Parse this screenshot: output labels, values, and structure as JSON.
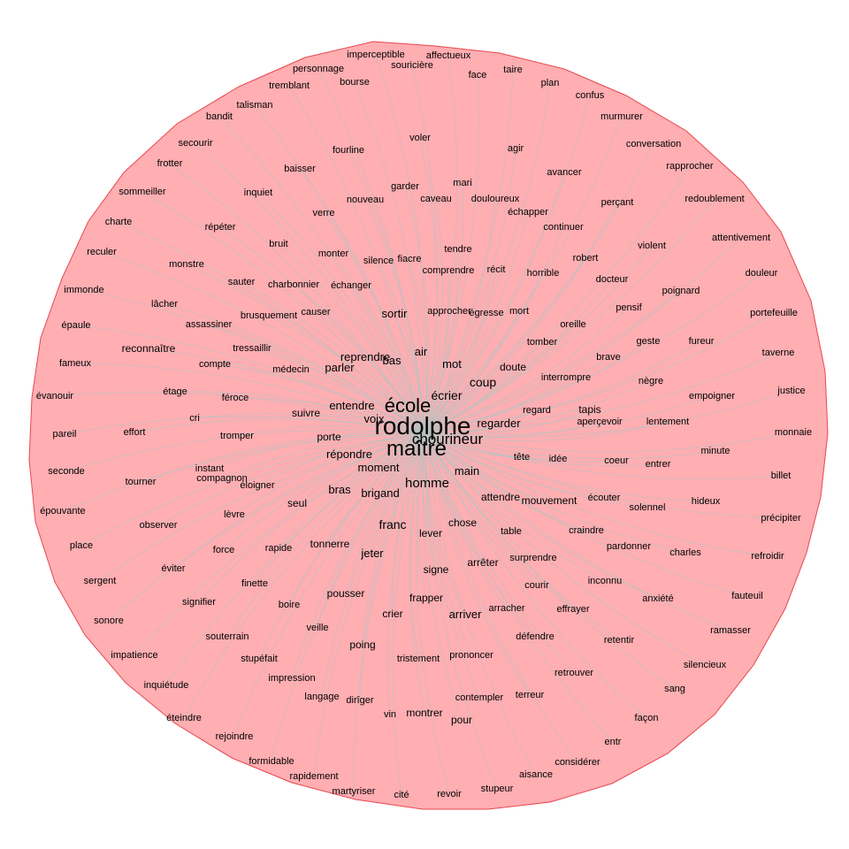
{
  "colors": {
    "hull_fill": "#ffaeb2",
    "hull_stroke": "#e8474f",
    "edge": "#b8c2c2",
    "node_label": "#000000"
  },
  "center_words": [
    "rodolphe",
    "école",
    "maître",
    "chourineur"
  ],
  "words": [
    "imperceptible",
    "affectueux",
    "souricière",
    "personnage",
    "bourse",
    "face",
    "taire",
    "plan",
    "tremblant",
    "talisman",
    "confus",
    "bandit",
    "murmurer",
    "secourir",
    "voler",
    "conversation",
    "frotter",
    "fourline",
    "agir",
    "baisser",
    "rapprocher",
    "avancer",
    "sommeiller",
    "inquiet",
    "mari",
    "garder",
    "redoublement",
    "perçant",
    "caveau",
    "douloureux",
    "nouveau",
    "charte",
    "verre",
    "échapper",
    "répéter",
    "continuer",
    "attentivement",
    "violent",
    "tendre",
    "bruit",
    "reculer",
    "monter",
    "fiacre",
    "silence",
    "robert",
    "douleur",
    "monstre",
    "comprendre",
    "récit",
    "horrible",
    "immonde",
    "sauter",
    "charbonnier",
    "échanger",
    "docteur",
    "poignard",
    "lâcher",
    "pensif",
    "portefeuille",
    "approcher",
    "égresse",
    "mort",
    "brusquement",
    "causer",
    "assassiner",
    "sortir",
    "épaule",
    "oreille",
    "reconnaître",
    "tressaillir",
    "tomber",
    "geste",
    "fureur",
    "reprendre",
    "air",
    "taverne",
    "fameux",
    "bas",
    "compte",
    "mot",
    "brave",
    "doute",
    "parler",
    "médecin",
    "interrompre",
    "nègre",
    "justice",
    "étage",
    "coup",
    "écrier",
    "féroce",
    "évanouir",
    "empoigner",
    "tapis",
    "regard",
    "entendre",
    "cri",
    "suivre",
    "voix",
    "regarder",
    "aperçevoir",
    "lentement",
    "monnaie",
    "pareil",
    "effort",
    "tromper",
    "porte",
    "minute",
    "répondre",
    "tête",
    "idée",
    "coeur",
    "entrer",
    "seconde",
    "instant",
    "moment",
    "billet",
    "compagnon",
    "main",
    "tourner",
    "éloigner",
    "homme",
    "bras",
    "brigand",
    "hideux",
    "solennel",
    "seul",
    "attendre",
    "mouvement",
    "écouter",
    "épouvante",
    "lèvre",
    "précipiter",
    "observer",
    "franc",
    "chose",
    "craindre",
    "table",
    "lever",
    "place",
    "force",
    "rapide",
    "tonnerre",
    "pardonner",
    "charles",
    "refroidir",
    "jeter",
    "surprendre",
    "sergent",
    "éviter",
    "signe",
    "arrêter",
    "finette",
    "inconnu",
    "courir",
    "fauteuil",
    "anxiété",
    "signifier",
    "boire",
    "frapper",
    "pousser",
    "arracher",
    "sonore",
    "crier",
    "arriver",
    "effrayer",
    "ramasser",
    "veille",
    "souterrain",
    "défendre",
    "retentir",
    "impatience",
    "stupéfait",
    "poing",
    "prononcer",
    "tristement",
    "silencieux",
    "retrouver",
    "inquiétude",
    "impression",
    "sang",
    "langage",
    "dirîger",
    "contempler",
    "terreur",
    "éteindre",
    "façon",
    "montrer",
    "vin",
    "rejoindre",
    "pour",
    "entr",
    "formidable",
    "considérer",
    "rapidement",
    "aisance",
    "martyriser",
    "cité",
    "revoir",
    "stupeur"
  ]
}
